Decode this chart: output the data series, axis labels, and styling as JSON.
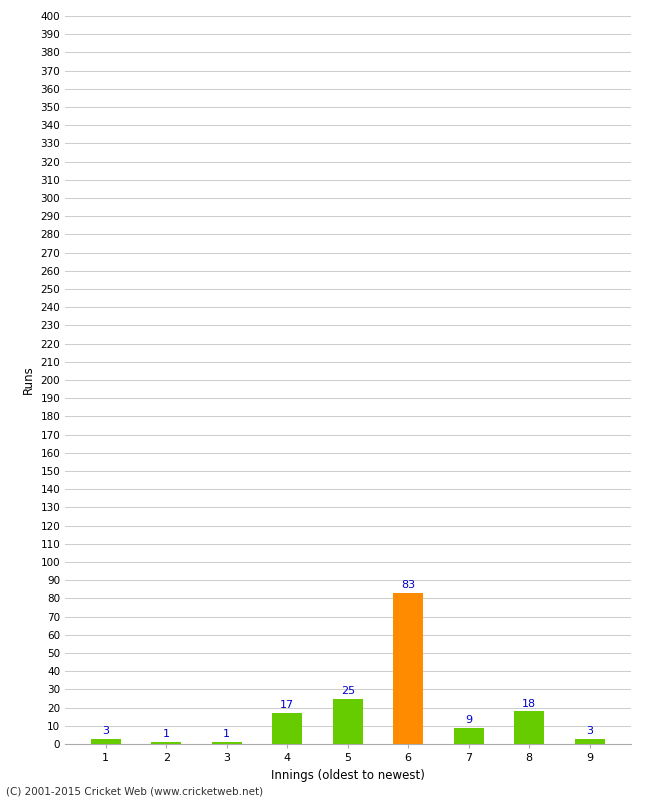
{
  "xlabel": "Innings (oldest to newest)",
  "ylabel": "Runs",
  "categories": [
    "1",
    "2",
    "3",
    "4",
    "5",
    "6",
    "7",
    "8",
    "9"
  ],
  "values": [
    3,
    1,
    1,
    17,
    25,
    83,
    9,
    18,
    3
  ],
  "bar_colors": [
    "#66cc00",
    "#66cc00",
    "#66cc00",
    "#66cc00",
    "#66cc00",
    "#ff8c00",
    "#66cc00",
    "#66cc00",
    "#66cc00"
  ],
  "label_color": "#0000cc",
  "ylim": [
    0,
    400
  ],
  "yticks": [
    0,
    10,
    20,
    30,
    40,
    50,
    60,
    70,
    80,
    90,
    100,
    110,
    120,
    130,
    140,
    150,
    160,
    170,
    180,
    190,
    200,
    210,
    220,
    230,
    240,
    250,
    260,
    270,
    280,
    290,
    300,
    310,
    320,
    330,
    340,
    350,
    360,
    370,
    380,
    390,
    400
  ],
  "background_color": "#ffffff",
  "grid_color": "#cccccc",
  "footer_text": "(C) 2001-2015 Cricket Web (www.cricketweb.net)",
  "bar_width": 0.5
}
